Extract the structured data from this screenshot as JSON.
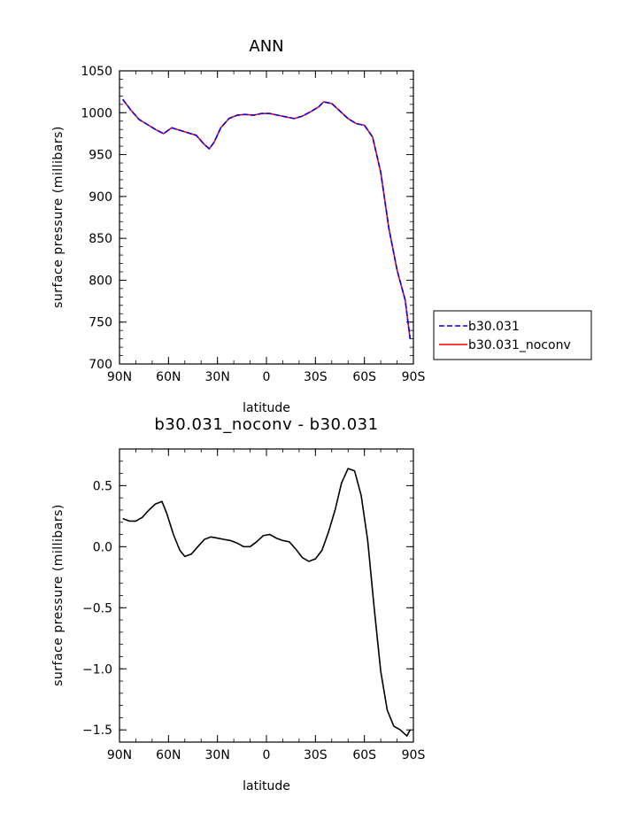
{
  "chart_data": [
    {
      "type": "line",
      "title": "ANN",
      "xlabel": "latitude",
      "ylabel": "surface pressure (millibars)",
      "x_ticks": [
        -90,
        -60,
        -30,
        0,
        30,
        60,
        90
      ],
      "x_tick_labels": [
        "90N",
        "60N",
        "30N",
        "0",
        "30S",
        "60S",
        "90S"
      ],
      "xlim": [
        -90,
        90
      ],
      "ylim": [
        700,
        1050
      ],
      "y_ticks": [
        700,
        750,
        800,
        850,
        900,
        950,
        1000,
        1050
      ],
      "y_tick_labels": [
        "700",
        "750",
        "800",
        "850",
        "900",
        "950",
        "1000",
        "1050"
      ],
      "grid": false,
      "legend_position": "right",
      "x": [
        -88,
        -83,
        -78,
        -73,
        -68,
        -63,
        -58,
        -53,
        -48,
        -43,
        -38,
        -35,
        -32,
        -28,
        -23,
        -18,
        -13,
        -8,
        -3,
        2,
        7,
        12,
        17,
        22,
        27,
        32,
        35,
        40,
        45,
        50,
        55,
        60,
        65,
        70,
        75,
        80,
        85,
        88
      ],
      "series": [
        {
          "name": "b30.031",
          "color": "#0000ff",
          "dash": "dashed",
          "values": [
            1016,
            1003,
            992,
            986,
            980,
            975,
            982,
            979,
            976,
            973,
            962,
            957,
            965,
            982,
            993,
            997,
            998,
            997,
            999,
            999,
            997,
            995,
            993,
            996,
            1001,
            1007,
            1013,
            1011,
            1002,
            993,
            987,
            985,
            971,
            929,
            862,
            812,
            776,
            730
          ]
        },
        {
          "name": "b30.031_noconv",
          "color": "#ff0000",
          "dash": "solid",
          "values": [
            1016,
            1003,
            992,
            986,
            980,
            975,
            982,
            979,
            976,
            973,
            962,
            957,
            965,
            982,
            993,
            997,
            998,
            997,
            999,
            999,
            997,
            995,
            993,
            996,
            1001,
            1007,
            1013,
            1011,
            1002,
            993,
            987,
            985,
            971,
            929,
            862,
            812,
            776,
            730
          ]
        }
      ]
    },
    {
      "type": "line",
      "title": "b30.031_noconv - b30.031",
      "xlabel": "latitude",
      "ylabel": "surface pressure (millibars)",
      "x_ticks": [
        -90,
        -60,
        -30,
        0,
        30,
        60,
        90
      ],
      "x_tick_labels": [
        "90N",
        "60N",
        "30N",
        "0",
        "30S",
        "60S",
        "90S"
      ],
      "xlim": [
        -90,
        90
      ],
      "ylim": [
        -1.6,
        0.8
      ],
      "y_ticks": [
        -1.5,
        -1.0,
        -0.5,
        0.0,
        0.5
      ],
      "y_tick_labels": [
        "-1.5",
        "-1.0",
        "-0.5",
        "0.0",
        "0.5"
      ],
      "grid": false,
      "x": [
        -88,
        -84,
        -80,
        -76,
        -72,
        -68,
        -64,
        -61,
        -57,
        -53,
        -50,
        -46,
        -42,
        -38,
        -34,
        -30,
        -26,
        -22,
        -18,
        -14,
        -10,
        -6,
        -2,
        2,
        6,
        10,
        14,
        18,
        22,
        26,
        30,
        34,
        38,
        42,
        46,
        50,
        54,
        58,
        62,
        66,
        70,
        74,
        78,
        82,
        86,
        88
      ],
      "series": [
        {
          "name": "",
          "color": "#000000",
          "dash": "solid",
          "values": [
            0.23,
            0.21,
            0.21,
            0.24,
            0.3,
            0.35,
            0.37,
            0.27,
            0.1,
            -0.03,
            -0.08,
            -0.06,
            0.0,
            0.06,
            0.08,
            0.07,
            0.06,
            0.05,
            0.03,
            0.0,
            0.0,
            0.04,
            0.09,
            0.1,
            0.07,
            0.05,
            0.04,
            -0.02,
            -0.09,
            -0.12,
            -0.1,
            -0.03,
            0.12,
            0.3,
            0.52,
            0.64,
            0.62,
            0.42,
            0.05,
            -0.5,
            -1.02,
            -1.34,
            -1.47,
            -1.5,
            -1.55,
            -1.5
          ]
        }
      ]
    }
  ]
}
